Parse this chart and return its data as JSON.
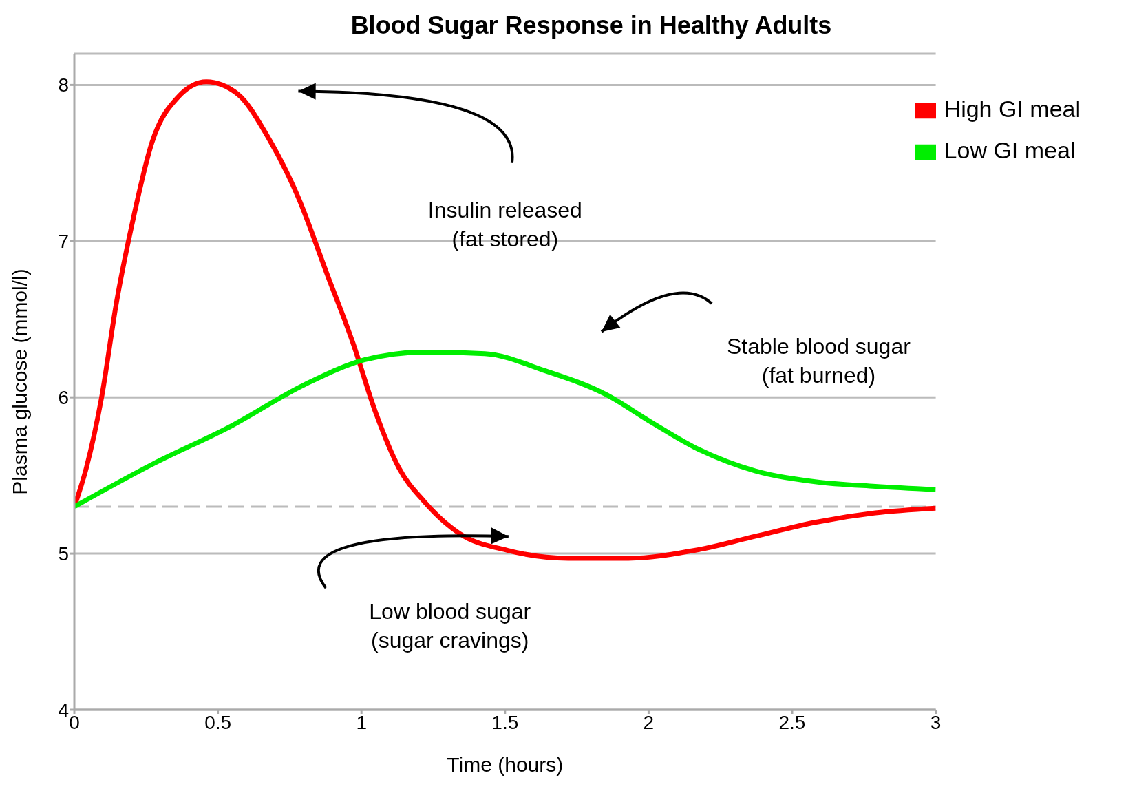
{
  "chart_data": {
    "type": "line",
    "title": "Blood Sugar Response in Healthy Adults",
    "xlabel": "Time (hours)",
    "ylabel": "Plasma glucose (mmol/l)",
    "xlim": [
      0,
      3
    ],
    "xticks": [
      0,
      0.5,
      1,
      1.5,
      2,
      2.5,
      3
    ],
    "ylim": [
      4,
      8.2
    ],
    "yticks": [
      4,
      5,
      6,
      7,
      8
    ],
    "grid": "y",
    "legend": "top right",
    "marker": "none",
    "line_style": "solid",
    "series": [
      {
        "name": "High GI meal",
        "color": "#ff0000",
        "x": [
          0,
          0.042,
          0.094,
          0.147,
          0.2,
          0.27,
          0.36,
          0.46,
          0.57,
          0.67,
          0.78,
          0.88,
          0.97,
          1.05,
          1.13,
          1.22,
          1.34,
          1.51,
          1.72,
          1.93,
          2.16,
          2.37,
          2.58,
          2.79,
          3
        ],
        "values": [
          5.3,
          5.55,
          5.99,
          6.61,
          7.1,
          7.63,
          7.92,
          8.02,
          7.94,
          7.68,
          7.28,
          6.79,
          6.35,
          5.9,
          5.55,
          5.33,
          5.13,
          5.02,
          4.97,
          4.97,
          5.02,
          5.11,
          5.2,
          5.26,
          5.29
        ]
      },
      {
        "name": "Low GI meal",
        "color": "#00ee00",
        "x": [
          0,
          0.27,
          0.55,
          0.8,
          1.01,
          1.22,
          1.43,
          1.64,
          1.85,
          2.01,
          2.16,
          2.37,
          2.58,
          2.79,
          3
        ],
        "values": [
          5.3,
          5.57,
          5.82,
          6.08,
          6.24,
          6.29,
          6.28,
          6.17,
          6.02,
          5.84,
          5.68,
          5.53,
          5.46,
          5.43,
          5.41
        ]
      }
    ],
    "ref_lines": [
      {
        "axis": "y",
        "value": 5.3,
        "color": "#bbbbbb",
        "line_style": "dashed"
      }
    ],
    "annotations": [
      "Insulin released\n(fat stored)",
      "Stable blood sugar\n(fat burned)",
      "Low blood sugar\n(sugar cravings)"
    ]
  }
}
